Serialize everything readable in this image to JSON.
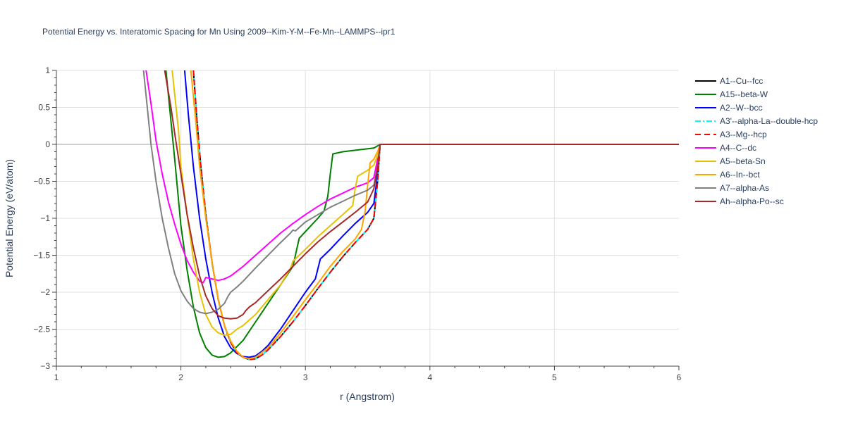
{
  "chart_data": {
    "type": "line",
    "title": "Potential Energy vs. Interatomic Spacing for Mn Using 2009--Kim-Y-M--Fe-Mn--LAMMPS--ipr1",
    "xlabel": "r (Angstrom)",
    "ylabel": "Potential Energy (eV/atom)",
    "xlim": [
      1,
      6
    ],
    "ylim": [
      -3,
      1
    ],
    "xticks": [
      1,
      2,
      3,
      4,
      5,
      6
    ],
    "xtick_labels": [
      "1",
      "2",
      "3",
      "4",
      "5",
      "6"
    ],
    "yticks": [
      -3,
      -2.5,
      -2,
      -1.5,
      -1,
      -0.5,
      0,
      0.5,
      1
    ],
    "ytick_labels": [
      "−3",
      "−2.5",
      "−2",
      "−1.5",
      "−1",
      "−0.5",
      "0",
      "0.5",
      "1"
    ],
    "grid": true,
    "legend_position": "right",
    "series": [
      {
        "name": "A1--Cu--fcc",
        "color": "#000000",
        "dash": "solid",
        "x": [
          2.1,
          2.13,
          2.16,
          2.2,
          2.25,
          2.3,
          2.35,
          2.4,
          2.45,
          2.5,
          2.55,
          2.6,
          2.65,
          2.7,
          2.8,
          2.9,
          3.0,
          3.1,
          3.2,
          3.3,
          3.4,
          3.5,
          3.55,
          3.58,
          3.6,
          3.7,
          6.0
        ],
        "y": [
          1.0,
          0.3,
          -0.3,
          -0.95,
          -1.6,
          -2.1,
          -2.45,
          -2.68,
          -2.82,
          -2.88,
          -2.91,
          -2.9,
          -2.85,
          -2.78,
          -2.6,
          -2.4,
          -2.18,
          -1.95,
          -1.73,
          -1.52,
          -1.33,
          -1.15,
          -1.0,
          -0.5,
          0.0,
          0.0,
          0.0
        ]
      },
      {
        "name": "A15--beta-W",
        "color": "#008000",
        "dash": "solid",
        "x": [
          1.88,
          1.95,
          2.0,
          2.05,
          2.1,
          2.15,
          2.2,
          2.25,
          2.3,
          2.35,
          2.4,
          2.5,
          2.6,
          2.7,
          2.8,
          2.9,
          2.95,
          3.0,
          3.1,
          3.15,
          3.18,
          3.2,
          3.22,
          3.3,
          3.4,
          3.55,
          3.6,
          6.0
        ],
        "y": [
          1.0,
          -0.2,
          -1.1,
          -1.7,
          -2.2,
          -2.55,
          -2.75,
          -2.85,
          -2.88,
          -2.87,
          -2.82,
          -2.65,
          -2.4,
          -2.15,
          -1.9,
          -1.65,
          -1.27,
          -1.18,
          -1.0,
          -0.9,
          -0.7,
          -0.4,
          -0.13,
          -0.1,
          -0.08,
          -0.05,
          0.0,
          0.0
        ]
      },
      {
        "name": "A2--W--bcc",
        "color": "#0000ff",
        "dash": "solid",
        "x": [
          2.03,
          2.06,
          2.1,
          2.15,
          2.2,
          2.25,
          2.3,
          2.35,
          2.4,
          2.45,
          2.5,
          2.55,
          2.6,
          2.65,
          2.7,
          2.8,
          2.9,
          3.0,
          3.08,
          3.12,
          3.2,
          3.3,
          3.4,
          3.5,
          3.55,
          3.58,
          3.6,
          6.0
        ],
        "y": [
          1.0,
          0.4,
          -0.3,
          -1.0,
          -1.55,
          -2.0,
          -2.35,
          -2.6,
          -2.75,
          -2.83,
          -2.87,
          -2.88,
          -2.86,
          -2.8,
          -2.72,
          -2.5,
          -2.25,
          -2.0,
          -1.82,
          -1.55,
          -1.42,
          -1.24,
          -1.07,
          -0.92,
          -0.8,
          -0.4,
          0.0,
          0.0
        ]
      },
      {
        "name": "A3'--alpha-La--double-hcp",
        "color": "#00ffff",
        "dash": "dashdot",
        "x": [
          2.1,
          2.13,
          2.16,
          2.2,
          2.25,
          2.3,
          2.35,
          2.4,
          2.45,
          2.5,
          2.55,
          2.6,
          2.65,
          2.7,
          2.8,
          2.9,
          3.0,
          3.1,
          3.2,
          3.3,
          3.4,
          3.5,
          3.55,
          3.58,
          3.6,
          3.7,
          6.0
        ],
        "y": [
          1.0,
          0.3,
          -0.3,
          -0.95,
          -1.6,
          -2.1,
          -2.45,
          -2.68,
          -2.82,
          -2.88,
          -2.91,
          -2.9,
          -2.85,
          -2.78,
          -2.6,
          -2.4,
          -2.18,
          -1.95,
          -1.73,
          -1.52,
          -1.33,
          -1.15,
          -1.0,
          -0.5,
          0.0,
          0.0,
          0.0
        ]
      },
      {
        "name": "A3--Mg--hcp",
        "color": "#ff0000",
        "dash": "dash",
        "x": [
          2.1,
          2.13,
          2.16,
          2.2,
          2.25,
          2.3,
          2.35,
          2.4,
          2.45,
          2.5,
          2.55,
          2.6,
          2.65,
          2.7,
          2.8,
          2.9,
          3.0,
          3.1,
          3.2,
          3.3,
          3.4,
          3.5,
          3.55,
          3.58,
          3.6,
          3.7,
          6.0
        ],
        "y": [
          1.0,
          0.3,
          -0.3,
          -0.95,
          -1.6,
          -2.1,
          -2.45,
          -2.68,
          -2.82,
          -2.88,
          -2.91,
          -2.9,
          -2.85,
          -2.78,
          -2.6,
          -2.4,
          -2.18,
          -1.95,
          -1.73,
          -1.52,
          -1.33,
          -1.15,
          -1.0,
          -0.5,
          0.0,
          0.0,
          0.0
        ]
      },
      {
        "name": "A4--C--dc",
        "color": "#ff00ff",
        "dash": "solid",
        "x": [
          1.72,
          1.76,
          1.8,
          1.85,
          1.9,
          1.95,
          2.0,
          2.05,
          2.1,
          2.15,
          2.18,
          2.2,
          2.25,
          2.3,
          2.35,
          2.4,
          2.5,
          2.6,
          2.7,
          2.8,
          2.9,
          3.0,
          3.1,
          3.2,
          3.3,
          3.4,
          3.5,
          3.55,
          3.58,
          3.6,
          6.0
        ],
        "y": [
          1.0,
          0.55,
          0.05,
          -0.4,
          -0.78,
          -1.08,
          -1.35,
          -1.57,
          -1.73,
          -1.85,
          -1.87,
          -1.8,
          -1.82,
          -1.84,
          -1.82,
          -1.78,
          -1.65,
          -1.5,
          -1.35,
          -1.2,
          -1.07,
          -0.95,
          -0.84,
          -0.74,
          -0.66,
          -0.58,
          -0.52,
          -0.45,
          -0.2,
          0.0,
          0.0
        ]
      },
      {
        "name": "A5--beta-Sn",
        "color": "#e6c300",
        "dash": "solid",
        "x": [
          1.93,
          1.98,
          2.0,
          2.05,
          2.1,
          2.15,
          2.2,
          2.25,
          2.3,
          2.35,
          2.4,
          2.45,
          2.5,
          2.6,
          2.7,
          2.8,
          2.88,
          2.9,
          3.0,
          3.1,
          3.2,
          3.3,
          3.38,
          3.4,
          3.42,
          3.5,
          3.55,
          3.58,
          3.6,
          6.0
        ],
        "y": [
          1.0,
          0.2,
          -0.3,
          -0.95,
          -1.55,
          -2.0,
          -2.3,
          -2.47,
          -2.55,
          -2.58,
          -2.57,
          -2.5,
          -2.45,
          -2.3,
          -2.1,
          -1.9,
          -1.68,
          -1.58,
          -1.42,
          -1.25,
          -1.1,
          -0.95,
          -0.83,
          -0.6,
          -0.43,
          -0.35,
          -0.28,
          -0.15,
          0.0,
          0.0
        ]
      },
      {
        "name": "A6--In--bct",
        "color": "#ffa500",
        "dash": "solid",
        "x": [
          2.08,
          2.12,
          2.15,
          2.2,
          2.25,
          2.3,
          2.35,
          2.4,
          2.45,
          2.5,
          2.55,
          2.6,
          2.7,
          2.8,
          2.9,
          3.0,
          3.1,
          3.2,
          3.3,
          3.4,
          3.45,
          3.48,
          3.5,
          3.52,
          3.55,
          3.58,
          3.6,
          6.0
        ],
        "y": [
          1.0,
          0.3,
          -0.3,
          -1.0,
          -1.6,
          -2.1,
          -2.45,
          -2.66,
          -2.8,
          -2.88,
          -2.9,
          -2.88,
          -2.75,
          -2.55,
          -2.33,
          -2.1,
          -1.88,
          -1.65,
          -1.45,
          -1.28,
          -1.15,
          -0.9,
          -0.55,
          -0.25,
          -0.2,
          -0.1,
          0.0,
          0.0
        ]
      },
      {
        "name": "A7--alpha-As",
        "color": "#808080",
        "dash": "solid",
        "x": [
          1.7,
          1.73,
          1.76,
          1.8,
          1.85,
          1.9,
          1.95,
          2.0,
          2.05,
          2.1,
          2.15,
          2.2,
          2.25,
          2.3,
          2.35,
          2.38,
          2.4,
          2.45,
          2.5,
          2.6,
          2.7,
          2.8,
          2.88,
          2.9,
          2.92,
          3.0,
          3.1,
          3.2,
          3.3,
          3.4,
          3.5,
          3.55,
          3.58,
          3.6,
          6.0
        ],
        "y": [
          1.0,
          0.5,
          0.0,
          -0.5,
          -1.0,
          -1.4,
          -1.75,
          -1.98,
          -2.12,
          -2.22,
          -2.27,
          -2.29,
          -2.27,
          -2.23,
          -2.15,
          -2.05,
          -2.0,
          -1.93,
          -1.85,
          -1.67,
          -1.5,
          -1.33,
          -1.2,
          -1.16,
          -1.17,
          -1.05,
          -0.95,
          -0.85,
          -0.77,
          -0.69,
          -0.62,
          -0.55,
          -0.3,
          0.0,
          0.0
        ]
      },
      {
        "name": "Ah--alpha-Po--sc",
        "color": "#a52a2a",
        "dash": "solid",
        "x": [
          1.87,
          1.92,
          1.95,
          2.0,
          2.05,
          2.1,
          2.15,
          2.2,
          2.25,
          2.3,
          2.35,
          2.4,
          2.45,
          2.5,
          2.52,
          2.55,
          2.6,
          2.7,
          2.8,
          2.9,
          3.0,
          3.1,
          3.2,
          3.3,
          3.4,
          3.5,
          3.55,
          3.58,
          3.6,
          6.0
        ],
        "y": [
          1.0,
          0.5,
          0.15,
          -0.4,
          -0.95,
          -1.4,
          -1.78,
          -2.05,
          -2.22,
          -2.32,
          -2.35,
          -2.36,
          -2.35,
          -2.3,
          -2.25,
          -2.2,
          -2.14,
          -1.98,
          -1.82,
          -1.65,
          -1.48,
          -1.32,
          -1.18,
          -1.05,
          -0.92,
          -0.78,
          -0.6,
          -0.3,
          0.0,
          0.0
        ]
      }
    ]
  }
}
